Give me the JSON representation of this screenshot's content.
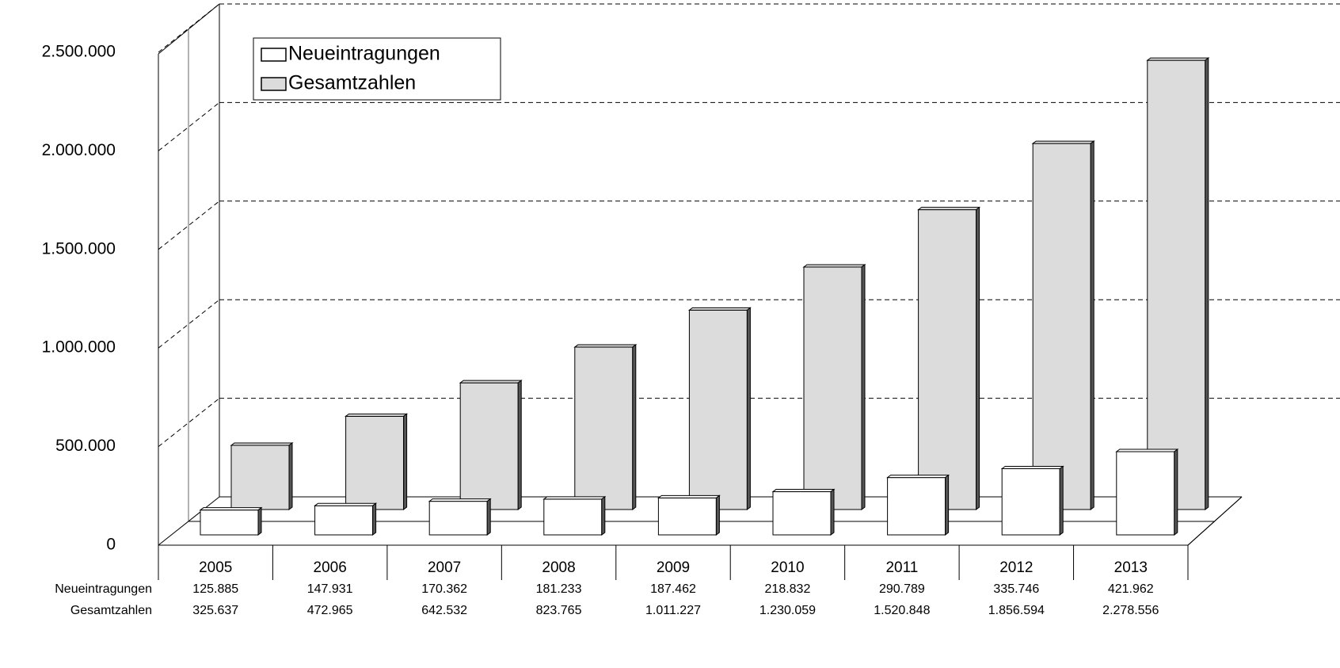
{
  "chart_data": {
    "type": "bar3d",
    "categories": [
      "2005",
      "2006",
      "2007",
      "2008",
      "2009",
      "2010",
      "2011",
      "2012",
      "2013"
    ],
    "series": [
      {
        "name": "Neueintragungen",
        "color": "#ffffff",
        "values": [
          125885,
          147931,
          170362,
          181233,
          187462,
          218832,
          290789,
          335746,
          421962
        ],
        "value_labels": [
          "125.885",
          "147.931",
          "170.362",
          "181.233",
          "187.462",
          "218.832",
          "290.789",
          "335.746",
          "421.962"
        ]
      },
      {
        "name": "Gesamtzahlen",
        "color": "#dcdcdc",
        "values": [
          325637,
          472965,
          642532,
          823765,
          1011227,
          1230059,
          1520848,
          1856594,
          2278556
        ],
        "value_labels": [
          "325.637",
          "472.965",
          "642.532",
          "823.765",
          "1.011.227",
          "1.230.059",
          "1.520.848",
          "1.856.594",
          "2.278.556"
        ]
      }
    ],
    "ylim": [
      0,
      2500000
    ],
    "yticks": [
      0,
      {
        "value": 500000,
        "label": "500.000"
      },
      {
        "value": 1000000,
        "label": "1.000.000"
      },
      {
        "value": 1500000,
        "label": "1.500.000"
      },
      {
        "value": 2000000,
        "label": "2.000.000"
      },
      {
        "value": 2500000,
        "label": "2.500.000"
      }
    ],
    "grid": true,
    "legend": "top-left"
  }
}
